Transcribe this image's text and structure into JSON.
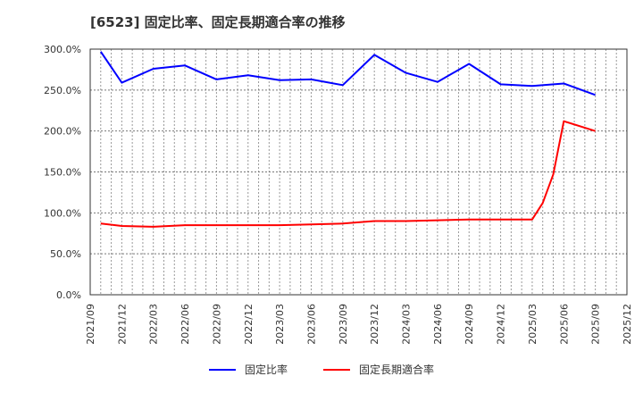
{
  "title": "[6523]  固定比率、固定長期適合率の推移",
  "legend": [
    {
      "label": "固定比率",
      "color": "#0000ff"
    },
    {
      "label": "固定長期適合率",
      "color": "#ff0000"
    }
  ],
  "chart_data": {
    "type": "line",
    "title": "[6523] 固定比率、固定長期適合率の推移",
    "xlabel": "",
    "ylabel": "",
    "ylim": [
      0,
      300
    ],
    "y_ticks": [
      "0.0%",
      "50.0%",
      "100.0%",
      "150.0%",
      "200.0%",
      "250.0%",
      "300.0%"
    ],
    "x_ticks": [
      "2021/09",
      "2021/12",
      "2022/03",
      "2022/06",
      "2022/09",
      "2022/12",
      "2023/03",
      "2023/06",
      "2023/09",
      "2023/12",
      "2024/03",
      "2024/06",
      "2024/09",
      "2024/12",
      "2025/03",
      "2025/06",
      "2025/09",
      "2025/12"
    ],
    "grid": true,
    "legend_position": "bottom",
    "series": [
      {
        "name": "固定比率",
        "color": "#0000ff",
        "points": [
          {
            "x": "2021/10",
            "y": 297
          },
          {
            "x": "2021/12",
            "y": 259
          },
          {
            "x": "2022/03",
            "y": 276
          },
          {
            "x": "2022/06",
            "y": 280
          },
          {
            "x": "2022/09",
            "y": 263
          },
          {
            "x": "2022/12",
            "y": 268
          },
          {
            "x": "2023/03",
            "y": 262
          },
          {
            "x": "2023/06",
            "y": 263
          },
          {
            "x": "2023/09",
            "y": 256
          },
          {
            "x": "2023/12",
            "y": 293
          },
          {
            "x": "2024/03",
            "y": 271
          },
          {
            "x": "2024/06",
            "y": 260
          },
          {
            "x": "2024/09",
            "y": 282
          },
          {
            "x": "2024/12",
            "y": 257
          },
          {
            "x": "2025/03",
            "y": 255
          },
          {
            "x": "2025/06",
            "y": 258
          },
          {
            "x": "2025/09",
            "y": 244
          }
        ]
      },
      {
        "name": "固定長期適合率",
        "color": "#ff0000",
        "points": [
          {
            "x": "2021/10",
            "y": 87
          },
          {
            "x": "2021/12",
            "y": 84
          },
          {
            "x": "2022/03",
            "y": 83
          },
          {
            "x": "2022/06",
            "y": 85
          },
          {
            "x": "2022/09",
            "y": 85
          },
          {
            "x": "2022/12",
            "y": 85
          },
          {
            "x": "2023/03",
            "y": 85
          },
          {
            "x": "2023/06",
            "y": 86
          },
          {
            "x": "2023/09",
            "y": 87
          },
          {
            "x": "2023/12",
            "y": 90
          },
          {
            "x": "2024/03",
            "y": 90
          },
          {
            "x": "2024/06",
            "y": 91
          },
          {
            "x": "2024/09",
            "y": 92
          },
          {
            "x": "2024/12",
            "y": 92
          },
          {
            "x": "2025/03",
            "y": 92
          },
          {
            "x": "2025/04",
            "y": 112
          },
          {
            "x": "2025/05",
            "y": 147
          },
          {
            "x": "2025/06",
            "y": 212
          },
          {
            "x": "2025/09",
            "y": 200
          }
        ]
      }
    ]
  }
}
